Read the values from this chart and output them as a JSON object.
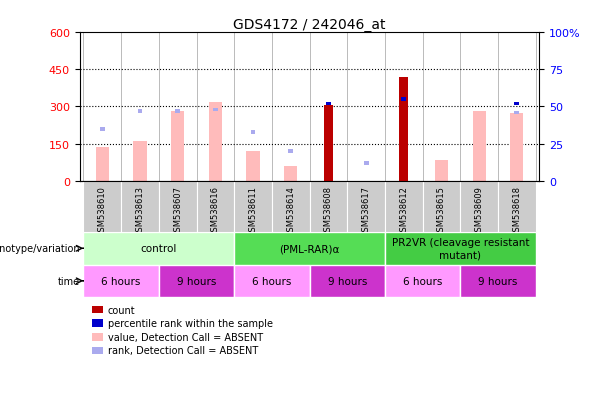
{
  "title": "GDS4172 / 242046_at",
  "samples": [
    "GSM538610",
    "GSM538613",
    "GSM538607",
    "GSM538616",
    "GSM538611",
    "GSM538614",
    "GSM538608",
    "GSM538617",
    "GSM538612",
    "GSM538615",
    "GSM538609",
    "GSM538618"
  ],
  "count_values": [
    null,
    null,
    null,
    null,
    null,
    null,
    305,
    null,
    420,
    null,
    null,
    null
  ],
  "rank_values_pct": [
    null,
    null,
    null,
    null,
    null,
    null,
    52,
    null,
    55,
    null,
    null,
    52
  ],
  "absent_value": [
    135,
    160,
    280,
    320,
    120,
    60,
    null,
    null,
    null,
    85,
    280,
    275
  ],
  "absent_rank_pct": [
    35,
    47,
    47,
    48,
    33,
    20,
    null,
    12,
    null,
    null,
    null,
    46
  ],
  "ylim_left": [
    0,
    600
  ],
  "ylim_right": [
    0,
    100
  ],
  "yticks_left": [
    0,
    150,
    300,
    450,
    600
  ],
  "yticks_right": [
    0,
    25,
    50,
    75,
    100
  ],
  "yticklabels_right": [
    "0",
    "25",
    "50",
    "75",
    "100%"
  ],
  "group_boundaries": [
    0,
    4,
    8,
    12
  ],
  "group_labels": [
    "control",
    "(PML-RAR)α",
    "PR2VR (cleavage resistant\nmutant)"
  ],
  "group_colors": [
    "#ccffcc",
    "#55dd55",
    "#44cc44"
  ],
  "time_boundaries": [
    0,
    2,
    4,
    6,
    8,
    10,
    12
  ],
  "time_labels": [
    "6 hours",
    "9 hours",
    "6 hours",
    "9 hours",
    "6 hours",
    "9 hours"
  ],
  "time_colors_light": "#ff99ff",
  "time_colors_dark": "#cc33cc",
  "color_count": "#bb0000",
  "color_rank": "#0000cc",
  "color_absent_value": "#ffbbbb",
  "color_absent_rank": "#aaaaee",
  "sample_box_color": "#cccccc"
}
